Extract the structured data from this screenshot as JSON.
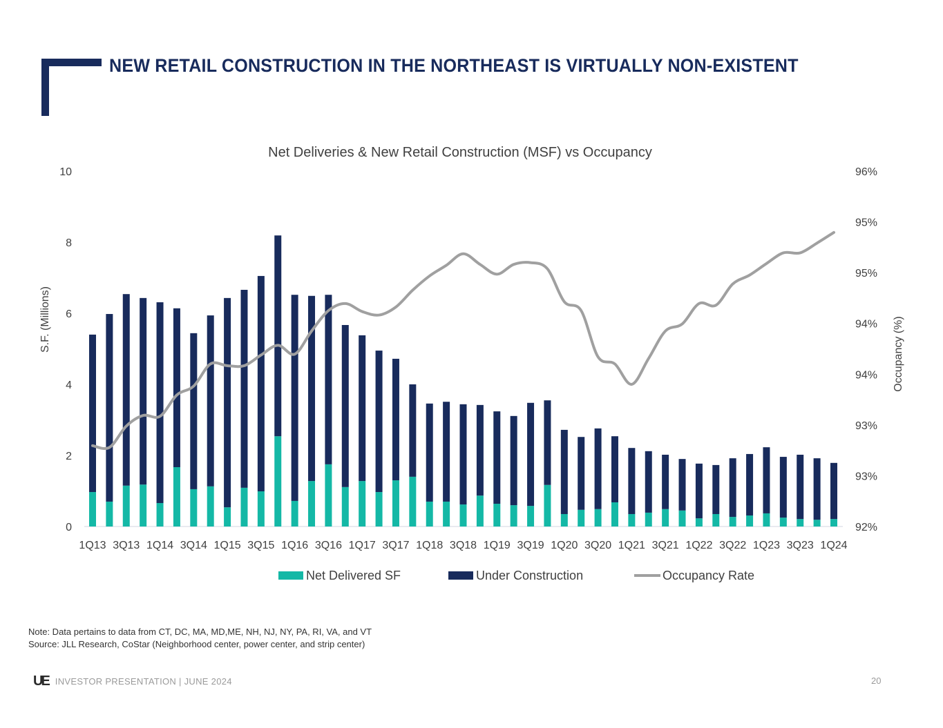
{
  "page": {
    "title": "NEW RETAIL CONSTRUCTION IN THE NORTHEAST IS VIRTUALLY NON-EXISTENT",
    "note_line1": "Note: Data pertains to data from CT, DC, MA, MD,ME, NH, NJ, NY, PA, RI, VA, and VT",
    "note_line2": "Source: JLL Research, CoStar (Neighborhood center, power center, and strip center)",
    "footer_logo": "UE",
    "footer_text": "INVESTOR PRESENTATION | JUNE 2024",
    "page_number": "20"
  },
  "colors": {
    "brand_navy": "#182b5c",
    "net_delivered": "#14b8a6",
    "under_construction": "#182b5c",
    "occupancy_line": "#a0a0a0",
    "text_gray": "#404040"
  },
  "chart_data": {
    "type": "bar",
    "stacked": true,
    "title": "Net Deliveries & New Retail Construction (MSF) vs Occupancy",
    "xlabel": "",
    "ylabel": "S.F. (Millions)",
    "y2label": "Occupancy (%)",
    "ylim": [
      0,
      10
    ],
    "yticks": [
      0,
      2,
      4,
      6,
      8,
      10
    ],
    "y2lim": [
      92,
      96
    ],
    "y2ticks": [
      92,
      92.5,
      93,
      93.5,
      94,
      94.5,
      95,
      95.5,
      96
    ],
    "y2tick_labels": [
      "92%",
      "93%",
      "93%",
      "94%",
      "94%",
      "95%",
      "95%",
      "96%",
      "96%"
    ],
    "y2tick_labels_visible": [
      "92%",
      "93%",
      "93%",
      "94%",
      "94%",
      "95%",
      "95%",
      "96%"
    ],
    "grid": false,
    "legend_position": "bottom",
    "categories": [
      "1Q13",
      "2Q13",
      "3Q13",
      "4Q13",
      "1Q14",
      "2Q14",
      "3Q14",
      "4Q14",
      "1Q15",
      "2Q15",
      "3Q15",
      "4Q15",
      "1Q16",
      "2Q16",
      "3Q16",
      "4Q16",
      "1Q17",
      "2Q17",
      "3Q17",
      "4Q17",
      "1Q18",
      "2Q18",
      "3Q18",
      "4Q18",
      "1Q19",
      "2Q19",
      "3Q19",
      "4Q19",
      "1Q20",
      "2Q20",
      "3Q20",
      "4Q20",
      "1Q21",
      "2Q21",
      "3Q21",
      "4Q21",
      "1Q22",
      "2Q22",
      "3Q22",
      "4Q22",
      "1Q23",
      "2Q23",
      "3Q23",
      "4Q23",
      "1Q24"
    ],
    "xtick_labels": [
      "1Q13",
      "3Q13",
      "1Q14",
      "3Q14",
      "1Q15",
      "3Q15",
      "1Q16",
      "3Q16",
      "1Q17",
      "3Q17",
      "1Q18",
      "3Q18",
      "1Q19",
      "3Q19",
      "1Q20",
      "3Q20",
      "1Q21",
      "3Q21",
      "1Q22",
      "3Q22",
      "1Q23",
      "3Q23",
      "1Q24"
    ],
    "series": [
      {
        "name": "Net Delivered SF",
        "type": "bar",
        "axis": "left",
        "values": [
          0.97,
          0.7,
          1.15,
          1.18,
          0.66,
          1.67,
          1.05,
          1.13,
          0.54,
          1.09,
          0.99,
          2.54,
          0.72,
          1.28,
          1.75,
          1.11,
          1.28,
          0.97,
          1.3,
          1.4,
          0.7,
          0.7,
          0.62,
          0.87,
          0.64,
          0.6,
          0.58,
          1.17,
          0.35,
          0.47,
          0.49,
          0.68,
          0.35,
          0.39,
          0.49,
          0.45,
          0.23,
          0.35,
          0.27,
          0.31,
          0.37,
          0.25,
          0.21,
          0.19,
          0.21
        ]
      },
      {
        "name": "Under Construction",
        "type": "bar",
        "axis": "left",
        "values": [
          4.43,
          5.28,
          5.39,
          5.25,
          5.65,
          4.47,
          4.39,
          4.81,
          5.89,
          5.57,
          6.06,
          5.65,
          5.8,
          5.21,
          4.77,
          4.56,
          4.1,
          3.98,
          3.42,
          2.6,
          2.76,
          2.81,
          2.82,
          2.55,
          2.6,
          2.51,
          2.9,
          2.38,
          2.37,
          2.05,
          2.27,
          1.86,
          1.86,
          1.73,
          1.53,
          1.45,
          1.54,
          1.38,
          1.65,
          1.73,
          1.86,
          1.71,
          1.81,
          1.73,
          1.58
        ]
      },
      {
        "name": "Occupancy Rate",
        "type": "line",
        "axis": "right",
        "values": [
          92.91,
          92.89,
          93.13,
          93.25,
          93.24,
          93.48,
          93.58,
          93.83,
          93.81,
          93.81,
          93.93,
          94.04,
          93.94,
          94.2,
          94.43,
          94.51,
          94.42,
          94.38,
          94.47,
          94.66,
          94.82,
          94.94,
          95.07,
          94.95,
          94.84,
          94.95,
          94.97,
          94.9,
          94.53,
          94.43,
          93.91,
          93.83,
          93.6,
          93.89,
          94.2,
          94.28,
          94.51,
          94.49,
          94.73,
          94.83,
          94.96,
          95.08,
          95.08,
          95.19,
          95.31
        ]
      }
    ],
    "legend": [
      {
        "label": "Net Delivered SF",
        "swatch": "bar"
      },
      {
        "label": "Under Construction",
        "swatch": "bar"
      },
      {
        "label": "Occupancy Rate",
        "swatch": "line"
      }
    ]
  }
}
